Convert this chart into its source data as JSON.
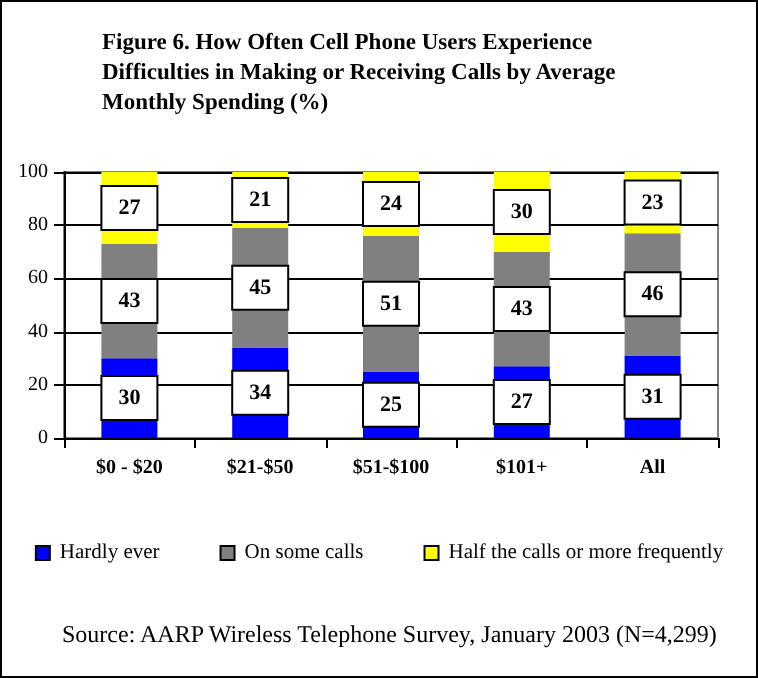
{
  "chart_data": {
    "type": "bar",
    "stacked": true,
    "title": "Figure 6. How Often Cell Phone Users Experience Difficulties in Making or Receiving Calls by Average Monthly Spending (%)",
    "categories": [
      "$0 - $20",
      "$21-$50",
      "$51-$100",
      "$101+",
      "All"
    ],
    "series": [
      {
        "name": "Hardly ever",
        "color": "#0000ff",
        "values": [
          30,
          34,
          25,
          27,
          31
        ]
      },
      {
        "name": "On some calls",
        "color": "#808080",
        "values": [
          43,
          45,
          51,
          43,
          46
        ]
      },
      {
        "name": "Half the calls or more frequently",
        "color": "#ffff00",
        "values": [
          27,
          21,
          24,
          30,
          23
        ]
      }
    ],
    "ylim": [
      0,
      100
    ],
    "yticks": [
      0,
      20,
      40,
      60,
      80,
      100
    ],
    "grid": "y",
    "legend": "bottom",
    "data_labels": true,
    "annotations": [
      "Source: AARP Wireless Telephone Survey, January 2003 (N=4,299)"
    ]
  }
}
